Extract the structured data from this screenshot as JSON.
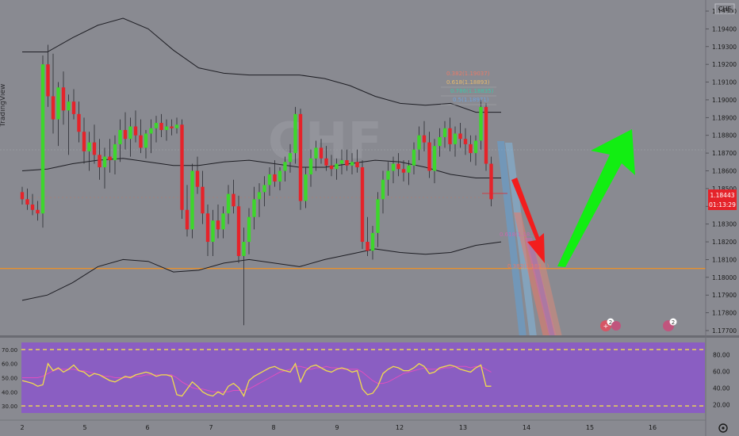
{
  "price_axis": {
    "currency": "CHF",
    "ticks": [
      "1.19500",
      "1.19400",
      "1.19300",
      "1.19200",
      "1.19100",
      "1.19000",
      "1.18900",
      "1.18800",
      "1.18700",
      "1.18600",
      "1.18500",
      "1.18400",
      "1.18300",
      "1.18200",
      "1.18100",
      "1.18000",
      "1.17900",
      "1.17800",
      "1.17700"
    ],
    "current_price": "1.18443",
    "countdown": "01:13:29"
  },
  "time_axis": {
    "ticks": [
      "2",
      "5",
      "6",
      "7",
      "8",
      "9",
      "12",
      "13",
      "14",
      "15",
      "16"
    ]
  },
  "fib_labels": [
    "0.382(1.19037)",
    "0.618(1.18893)",
    "0.786(1.18835)",
    "0.5(1.18971)",
    "0.618(1.18...)",
    "0.382(1.183...)"
  ],
  "event_badges": [
    "2",
    "2"
  ],
  "rsi_axis": {
    "left_ticks": [
      "70.00",
      "60.00",
      "50.00",
      "40.00",
      "30.00"
    ],
    "right_ticks": [
      "80.00",
      "60.00",
      "40.00",
      "20.00"
    ]
  },
  "colors": {
    "background": "#898a91",
    "bull": "#3dd62c",
    "bear": "#e5232a",
    "band": "#1e1e24",
    "support": "#e8912d",
    "rsi_panel": "#8a5ec2",
    "rsi_line": "#f2dd4c",
    "rsi_ma": "#e04fbf",
    "price_tag": "#e5232a"
  },
  "chart_data": {
    "type": "candlestick",
    "ylim": [
      1.1769,
      1.1958
    ],
    "candles": [
      [
        1.1848,
        1.1851,
        1.1841,
        1.1844
      ],
      [
        1.1844,
        1.185,
        1.1838,
        1.1841
      ],
      [
        1.1841,
        1.1847,
        1.1835,
        1.1838
      ],
      [
        1.1838,
        1.1843,
        1.1832,
        1.1836
      ],
      [
        1.1836,
        1.1925,
        1.1828,
        1.192
      ],
      [
        1.192,
        1.1931,
        1.1896,
        1.1902
      ],
      [
        1.1902,
        1.1926,
        1.1881,
        1.1889
      ],
      [
        1.1889,
        1.191,
        1.1874,
        1.1907
      ],
      [
        1.1907,
        1.1916,
        1.1886,
        1.1894
      ],
      [
        1.1894,
        1.1903,
        1.1869,
        1.1899
      ],
      [
        1.1899,
        1.1906,
        1.1889,
        1.1892
      ],
      [
        1.1892,
        1.1899,
        1.1876,
        1.1882
      ],
      [
        1.1882,
        1.189,
        1.1864,
        1.1871
      ],
      [
        1.1871,
        1.1882,
        1.186,
        1.1876
      ],
      [
        1.1876,
        1.1886,
        1.1864,
        1.1869
      ],
      [
        1.1869,
        1.1878,
        1.1855,
        1.1862
      ],
      [
        1.1862,
        1.1873,
        1.185,
        1.1868
      ],
      [
        1.1868,
        1.1878,
        1.1859,
        1.1866
      ],
      [
        1.1866,
        1.188,
        1.1858,
        1.1875
      ],
      [
        1.1875,
        1.1889,
        1.1865,
        1.1883
      ],
      [
        1.1883,
        1.1893,
        1.1872,
        1.1878
      ],
      [
        1.1878,
        1.189,
        1.1868,
        1.1885
      ],
      [
        1.1885,
        1.1894,
        1.1876,
        1.188
      ],
      [
        1.188,
        1.1889,
        1.187,
        1.1873
      ],
      [
        1.1873,
        1.1883,
        1.1867,
        1.1881
      ],
      [
        1.1881,
        1.1889,
        1.187,
        1.1884
      ],
      [
        1.1884,
        1.1891,
        1.1876,
        1.1887
      ],
      [
        1.1887,
        1.1892,
        1.1879,
        1.1883
      ],
      [
        1.1883,
        1.1889,
        1.1877,
        1.1885
      ],
      [
        1.1885,
        1.1889,
        1.188,
        1.1884
      ],
      [
        1.1884,
        1.189,
        1.1881,
        1.1886
      ],
      [
        1.1886,
        1.1889,
        1.1833,
        1.1838
      ],
      [
        1.1838,
        1.1852,
        1.1823,
        1.1827
      ],
      [
        1.1827,
        1.1864,
        1.1822,
        1.186
      ],
      [
        1.186,
        1.1868,
        1.1847,
        1.1851
      ],
      [
        1.1851,
        1.186,
        1.183,
        1.1836
      ],
      [
        1.1836,
        1.1841,
        1.1812,
        1.182
      ],
      [
        1.182,
        1.1838,
        1.1812,
        1.1832
      ],
      [
        1.1832,
        1.1841,
        1.1822,
        1.1827
      ],
      [
        1.1827,
        1.184,
        1.1822,
        1.1836
      ],
      [
        1.1836,
        1.1852,
        1.183,
        1.1847
      ],
      [
        1.1847,
        1.1855,
        1.1836,
        1.184
      ],
      [
        1.184,
        1.1846,
        1.1808,
        1.1812
      ],
      [
        1.1812,
        1.1828,
        1.1773,
        1.182
      ],
      [
        1.182,
        1.1839,
        1.1813,
        1.1834
      ],
      [
        1.1834,
        1.1851,
        1.1827,
        1.1844
      ],
      [
        1.1844,
        1.1853,
        1.1834,
        1.1848
      ],
      [
        1.1848,
        1.1857,
        1.184,
        1.1852
      ],
      [
        1.1852,
        1.1862,
        1.1846,
        1.1858
      ],
      [
        1.1858,
        1.1866,
        1.1851,
        1.1854
      ],
      [
        1.1854,
        1.1862,
        1.1849,
        1.186
      ],
      [
        1.186,
        1.1868,
        1.1854,
        1.1865
      ],
      [
        1.1865,
        1.1875,
        1.1859,
        1.187
      ],
      [
        1.187,
        1.1896,
        1.1864,
        1.1892
      ],
      [
        1.1892,
        1.1895,
        1.1838,
        1.1843
      ],
      [
        1.1843,
        1.1862,
        1.1839,
        1.1858
      ],
      [
        1.1858,
        1.1872,
        1.1851,
        1.1867
      ],
      [
        1.1867,
        1.1877,
        1.186,
        1.1873
      ],
      [
        1.1873,
        1.1878,
        1.1864,
        1.1867
      ],
      [
        1.1867,
        1.1874,
        1.186,
        1.1863
      ],
      [
        1.1863,
        1.1869,
        1.1857,
        1.1861
      ],
      [
        1.1861,
        1.1867,
        1.1855,
        1.1864
      ],
      [
        1.1864,
        1.1872,
        1.1858,
        1.1866
      ],
      [
        1.1866,
        1.1872,
        1.186,
        1.1863
      ],
      [
        1.1863,
        1.187,
        1.1858,
        1.1865
      ],
      [
        1.1865,
        1.1872,
        1.1859,
        1.1862
      ],
      [
        1.1862,
        1.1866,
        1.1816,
        1.182
      ],
      [
        1.182,
        1.1834,
        1.1812,
        1.1815
      ],
      [
        1.1815,
        1.1829,
        1.181,
        1.1825
      ],
      [
        1.1825,
        1.1848,
        1.1817,
        1.1844
      ],
      [
        1.1844,
        1.186,
        1.1836,
        1.1855
      ],
      [
        1.1855,
        1.1865,
        1.1846,
        1.186
      ],
      [
        1.186,
        1.1868,
        1.1853,
        1.1864
      ],
      [
        1.1864,
        1.187,
        1.1857,
        1.1861
      ],
      [
        1.1861,
        1.1866,
        1.1854,
        1.1859
      ],
      [
        1.1859,
        1.1866,
        1.1852,
        1.1863
      ],
      [
        1.1863,
        1.1876,
        1.1858,
        1.1872
      ],
      [
        1.1872,
        1.1885,
        1.1866,
        1.188
      ],
      [
        1.188,
        1.1888,
        1.1871,
        1.1876
      ],
      [
        1.1876,
        1.1882,
        1.1856,
        1.186
      ],
      [
        1.186,
        1.1878,
        1.1853,
        1.1874
      ],
      [
        1.1874,
        1.1884,
        1.1868,
        1.1879
      ],
      [
        1.1879,
        1.1888,
        1.1873,
        1.1884
      ],
      [
        1.1884,
        1.189,
        1.1871,
        1.1875
      ],
      [
        1.1875,
        1.1885,
        1.1868,
        1.1881
      ],
      [
        1.1881,
        1.1887,
        1.1873,
        1.1878
      ],
      [
        1.1878,
        1.1884,
        1.1869,
        1.1875
      ],
      [
        1.1875,
        1.188,
        1.1865,
        1.187
      ],
      [
        1.187,
        1.188,
        1.1863,
        1.1877
      ],
      [
        1.1877,
        1.19,
        1.1872,
        1.1896
      ],
      [
        1.1896,
        1.1898,
        1.186,
        1.1864
      ],
      [
        1.1864,
        1.1868,
        1.184,
        1.1844
      ]
    ],
    "bollinger": {
      "upper": [
        1.1927,
        1.1927,
        1.1935,
        1.1942,
        1.1946,
        1.194,
        1.1928,
        1.1918,
        1.1915,
        1.1914,
        1.1914,
        1.1914,
        1.1912,
        1.1908,
        1.1902,
        1.1898,
        1.1897,
        1.1898,
        1.1893,
        1.1893
      ],
      "middle": [
        1.186,
        1.1861,
        1.1864,
        1.1866,
        1.1867,
        1.1865,
        1.1863,
        1.1863,
        1.1865,
        1.1866,
        1.1864,
        1.1862,
        1.1862,
        1.1864,
        1.1866,
        1.1865,
        1.1862,
        1.1858,
        1.1856,
        1.1856
      ],
      "lower": [
        1.1787,
        1.179,
        1.1797,
        1.1806,
        1.181,
        1.1809,
        1.1803,
        1.1804,
        1.1808,
        1.181,
        1.1808,
        1.1806,
        1.181,
        1.1813,
        1.1816,
        1.1814,
        1.1813,
        1.1814,
        1.1818,
        1.182
      ]
    },
    "support_level": 1.1805,
    "resistance_level": 1.1869,
    "rsi": {
      "values": [
        48,
        47,
        46,
        44,
        45,
        60,
        55,
        57,
        54,
        56,
        59,
        55,
        54,
        51,
        53,
        52,
        50,
        48,
        47,
        49,
        51,
        50,
        52,
        53,
        54,
        53,
        51,
        52,
        52,
        51,
        38,
        37,
        42,
        47,
        44,
        40,
        38,
        37,
        40,
        38,
        44,
        46,
        43,
        37,
        48,
        51,
        53,
        55,
        57,
        58,
        56,
        55,
        54,
        60,
        47,
        55,
        58,
        59,
        57,
        55,
        54,
        56,
        57,
        56,
        54,
        55,
        42,
        38,
        39,
        44,
        53,
        56,
        58,
        57,
        55,
        55,
        57,
        60,
        58,
        53,
        54,
        57,
        58,
        59,
        58,
        56,
        55,
        54,
        57,
        59,
        44,
        44
      ],
      "ma": [
        50,
        50,
        50,
        50,
        51,
        53,
        55,
        56,
        56,
        56,
        56,
        55,
        55,
        54,
        53,
        52,
        51,
        51,
        50,
        50,
        50,
        51,
        51,
        51,
        52,
        52,
        52,
        52,
        52,
        52,
        50,
        47,
        45,
        43,
        42,
        42,
        41,
        40,
        40,
        40,
        40,
        41,
        41,
        41,
        42,
        44,
        46,
        48,
        50,
        52,
        54,
        55,
        56,
        58,
        58,
        57,
        56,
        57,
        57,
        58,
        57,
        57,
        56,
        56,
        56,
        56,
        54,
        51,
        48,
        46,
        46,
        47,
        49,
        51,
        53,
        54,
        55,
        56,
        57,
        56,
        56,
        56,
        57,
        57,
        58,
        58,
        58,
        57,
        58,
        58,
        56,
        54
      ],
      "upper_band": 70,
      "lower_band": 30
    }
  }
}
